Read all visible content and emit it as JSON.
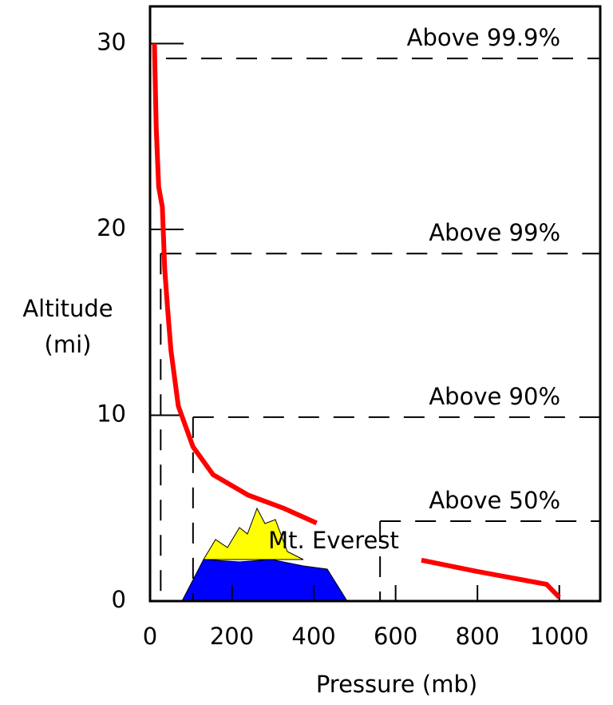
{
  "chart_data": {
    "type": "line",
    "x_label": "Pressure (mb)",
    "y_label": [
      "Altitude",
      "(mi)"
    ],
    "xlim": [
      0,
      1100
    ],
    "ylim": [
      0,
      32
    ],
    "xticks": [
      0,
      200,
      400,
      600,
      800,
      1000
    ],
    "yticks": [
      0,
      10,
      20,
      30
    ],
    "series": [
      {
        "color": "#ff0000",
        "x": [
          10.7,
          15,
          21,
          30,
          36,
          43,
          51,
          69,
          105,
          154,
          240,
          326,
          407,
          null,
          663,
          798,
          969,
          1000
        ],
        "values": [
          30,
          25.5,
          22.3,
          21.2,
          17.8,
          15.7,
          13.5,
          10.5,
          8.3,
          6.8,
          5.7,
          5.0,
          4.2,
          null,
          2.2,
          1.6,
          0.9,
          0.2
        ]
      }
    ],
    "levels": [
      {
        "label": "Above 99.9%",
        "altitude": 29.2
      },
      {
        "label": "Above 99%",
        "altitude": 18.7,
        "pressure": 26
      },
      {
        "label": "Above 90%",
        "altitude": 9.9,
        "pressure": 105
      },
      {
        "label": "Above 50%",
        "altitude": 4.3,
        "pressure": 562
      }
    ],
    "annotation": "Mt. Everest"
  }
}
